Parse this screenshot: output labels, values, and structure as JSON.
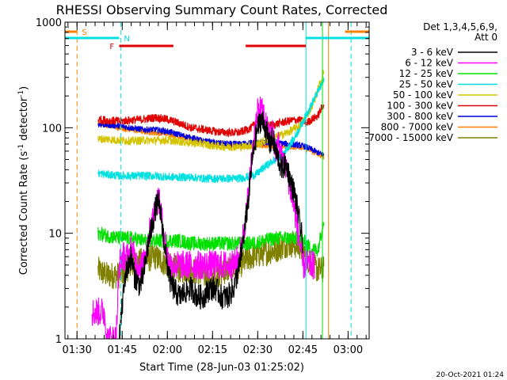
{
  "chart_data": {
    "type": "line",
    "title": "RHESSI Observing Summary Count Rates, Corrected",
    "xlabel": "Start Time (28-Jun-03 01:25:02)",
    "ylabel": "Corrected Count Rate (s",
    "ylabel_sup": "-1",
    "ylabel_end": " detector",
    "ylabel_sup2": "-1",
    "ylabel_close": ")",
    "y_scale": "log",
    "ylim": [
      1,
      1000
    ],
    "y_ticks": [
      {
        "value": 1,
        "label": "1"
      },
      {
        "value": 10,
        "label": "10"
      },
      {
        "value": 100,
        "label": "100"
      },
      {
        "value": 1000,
        "label": "1000"
      }
    ],
    "xlim": [
      86,
      187
    ],
    "x_ticks": [
      {
        "value": 90,
        "label": "01:30"
      },
      {
        "value": 105,
        "label": "01:45"
      },
      {
        "value": 120,
        "label": "02:00"
      },
      {
        "value": 135,
        "label": "02:15"
      },
      {
        "value": 150,
        "label": "02:30"
      },
      {
        "value": 165,
        "label": "02:45"
      },
      {
        "value": 180,
        "label": "03:00"
      }
    ],
    "legend": {
      "placement": "right",
      "header1": "Det 1,3,4,5,6,9,",
      "header2": "Att 0",
      "entries": [
        {
          "label": "3 - 6 keV",
          "color": "#000000"
        },
        {
          "label": "6 - 12 keV",
          "color": "#ff00ff"
        },
        {
          "label": "12 - 25 keV",
          "color": "#00e000"
        },
        {
          "label": "25 - 50 keV",
          "color": "#00e0e0"
        },
        {
          "label": "50 - 100 keV",
          "color": "#d4c400"
        },
        {
          "label": "100 - 300 keV",
          "color": "#e00000"
        },
        {
          "label": "300 - 800 keV",
          "color": "#0000e0"
        },
        {
          "label": "800 - 7000 keV",
          "color": "#ff8000"
        },
        {
          "label": "7000 - 15000 keV",
          "color": "#808000"
        }
      ]
    },
    "flag_bars": [
      {
        "label": "S",
        "color": "#ff8000",
        "level": 1,
        "segments": [
          [
            86,
            90
          ]
        ]
      },
      {
        "label": "N",
        "color": "#00e0e0",
        "level": 2,
        "segments": [
          [
            86,
            104
          ]
        ]
      },
      {
        "label": "F",
        "color": "#e00000",
        "level": 3,
        "segments": [
          [
            104,
            122
          ],
          [
            146,
            166
          ]
        ]
      }
    ],
    "flag_bars_right": [
      {
        "color": "#ff8000",
        "level": 1,
        "segments": [
          [
            179,
            187
          ]
        ]
      },
      {
        "color": "#00e0e0",
        "level": 2,
        "segments": [
          [
            166,
            187
          ]
        ]
      }
    ],
    "vlines": [
      {
        "x": 90,
        "color": "#ff8000",
        "dashed": true
      },
      {
        "x": 104.5,
        "color": "#00e0e0",
        "dashed": true
      },
      {
        "x": 166,
        "color": "#00e0e0",
        "dashed": false
      },
      {
        "x": 171.5,
        "color": "#00e000",
        "dashed": false
      },
      {
        "x": 173.5,
        "color": "#ff8000",
        "dashed": false
      },
      {
        "x": 181,
        "color": "#00e0e0",
        "dashed": true
      }
    ],
    "series": [
      {
        "name": "3 - 6 keV",
        "color": "#000000",
        "noise": 0.12,
        "x": [
          104,
          105,
          106,
          107,
          108,
          109,
          110,
          111,
          112,
          113,
          114,
          115,
          116,
          117,
          118,
          119,
          120,
          121,
          122,
          124,
          126,
          128,
          130,
          132,
          134,
          136,
          138,
          140,
          142,
          144,
          145,
          146,
          147,
          148,
          149,
          150,
          151,
          152,
          153,
          154,
          155,
          156,
          157,
          158,
          159,
          160,
          161,
          162,
          163,
          164,
          165
        ],
        "y": [
          1,
          2,
          4,
          5,
          6,
          4,
          3.5,
          3.2,
          4,
          6,
          9,
          12,
          17,
          20,
          14,
          8,
          5,
          3.5,
          3,
          2.5,
          2.8,
          3,
          2.5,
          2.5,
          3,
          3,
          2.5,
          2.5,
          3,
          5,
          8,
          13,
          22,
          45,
          70,
          100,
          120,
          110,
          90,
          70,
          80,
          60,
          50,
          40,
          45,
          40,
          30,
          25,
          18,
          12,
          8
        ]
      },
      {
        "name": "6 - 12 keV",
        "color": "#ff00ff",
        "noise": 0.14,
        "x": [
          95,
          96,
          97,
          98,
          99,
          100,
          101,
          102,
          103,
          104,
          105,
          106,
          107,
          108,
          109,
          110,
          111,
          112,
          113,
          114,
          115,
          116,
          117,
          118,
          119,
          120,
          121,
          122,
          124,
          126,
          128,
          130,
          132,
          134,
          136,
          138,
          140,
          142,
          144,
          145,
          146,
          147,
          148,
          149,
          150,
          151,
          152,
          153,
          154,
          155,
          156,
          157,
          158,
          159,
          160,
          161,
          162,
          163,
          164,
          165,
          166,
          167,
          168,
          169
        ],
        "y": [
          1.8,
          1.8,
          1.8,
          1.8,
          1.8,
          1,
          1,
          1,
          1,
          5,
          6,
          6,
          6,
          7,
          6,
          5,
          5,
          5,
          7,
          10,
          13,
          18,
          22,
          15,
          9,
          6,
          5,
          5,
          5,
          5,
          5,
          5,
          5,
          5,
          5,
          5,
          5,
          5,
          6,
          9,
          14,
          25,
          50,
          90,
          140,
          150,
          130,
          100,
          80,
          90,
          60,
          70,
          50,
          45,
          35,
          25,
          18,
          12,
          8,
          5,
          5,
          5,
          5,
          5
        ]
      },
      {
        "name": "12 - 25 keV",
        "color": "#00e000",
        "noise": 0.07,
        "x": [
          97,
          100,
          104,
          108,
          112,
          116,
          120,
          124,
          128,
          132,
          136,
          140,
          144,
          148,
          152,
          156,
          160,
          164,
          166,
          168,
          170,
          172
        ],
        "y": [
          10,
          9.5,
          9,
          9,
          8.5,
          8.5,
          8.5,
          8.5,
          8,
          8,
          8,
          8,
          8,
          8,
          8.5,
          9,
          9,
          9,
          8,
          7,
          7,
          14
        ]
      },
      {
        "name": "25 - 50 keV",
        "color": "#00e0e0",
        "noise": 0.04,
        "x": [
          97,
          100,
          104,
          108,
          112,
          116,
          120,
          124,
          128,
          132,
          136,
          140,
          144,
          148,
          150,
          152,
          154,
          156,
          158,
          160,
          162,
          164,
          166,
          168,
          170,
          172
        ],
        "y": [
          37,
          36,
          35,
          35,
          35,
          35,
          34,
          34,
          34,
          33,
          33,
          33,
          33,
          35,
          37,
          42,
          46,
          50,
          55,
          65,
          78,
          100,
          130,
          170,
          220,
          280
        ]
      },
      {
        "name": "50 - 100 keV",
        "color": "#d4c400",
        "noise": 0.04,
        "x": [
          97,
          100,
          104,
          108,
          112,
          116,
          120,
          124,
          128,
          132,
          136,
          140,
          144,
          148,
          152,
          156,
          160,
          164,
          166,
          168,
          170,
          172
        ],
        "y": [
          78,
          78,
          76,
          75,
          76,
          76,
          76,
          74,
          72,
          70,
          67,
          66,
          66,
          68,
          74,
          82,
          90,
          105,
          125,
          160,
          230,
          350
        ]
      },
      {
        "name": "100 - 300 keV",
        "color": "#e00000",
        "noise": 0.04,
        "x": [
          97,
          100,
          104,
          108,
          112,
          116,
          120,
          124,
          128,
          132,
          136,
          140,
          144,
          148,
          150,
          152,
          154,
          156,
          158,
          160,
          162,
          164,
          166,
          168,
          170,
          172
        ],
        "y": [
          120,
          118,
          115,
          118,
          120,
          125,
          120,
          110,
          100,
          96,
          92,
          90,
          90,
          100,
          118,
          108,
          105,
          108,
          112,
          115,
          118,
          118,
          110,
          120,
          130,
          170
        ]
      },
      {
        "name": "300 - 800 keV",
        "color": "#0000e0",
        "noise": 0.03,
        "x": [
          97,
          100,
          104,
          108,
          112,
          116,
          120,
          124,
          128,
          132,
          136,
          140,
          144,
          148,
          152,
          156,
          160,
          164,
          166,
          168,
          170,
          172
        ],
        "y": [
          108,
          106,
          104,
          100,
          96,
          96,
          92,
          86,
          80,
          75,
          72,
          70,
          70,
          72,
          72,
          72,
          70,
          68,
          66,
          62,
          58,
          55
        ]
      },
      {
        "name": "800 - 7000 keV",
        "color": "#ff8000",
        "noise": 0.03,
        "x": [
          97,
          100,
          104,
          108,
          112,
          116,
          120,
          124,
          128,
          132,
          136,
          140,
          144,
          148,
          152,
          156,
          160,
          164,
          166,
          168,
          170,
          172
        ],
        "y": [
          112,
          106,
          100,
          96,
          92,
          90,
          88,
          82,
          78,
          73,
          70,
          68,
          68,
          68,
          68,
          68,
          66,
          66,
          64,
          60,
          56,
          54
        ]
      },
      {
        "name": "7000 - 15000 keV",
        "color": "#808000",
        "noise": 0.13,
        "x": [
          97,
          100,
          104,
          108,
          112,
          116,
          120,
          124,
          128,
          132,
          136,
          140,
          144,
          148,
          152,
          156,
          160,
          164,
          166,
          168,
          170,
          172
        ],
        "y": [
          4.5,
          4,
          4,
          5,
          5.5,
          6,
          5,
          4.5,
          4.5,
          4,
          4,
          4.5,
          5,
          6,
          6.5,
          7,
          8,
          7.5,
          6,
          5,
          4.5,
          4.5
        ]
      }
    ]
  },
  "footer": {
    "timestamp": "20-Oct-2021 01:24"
  }
}
